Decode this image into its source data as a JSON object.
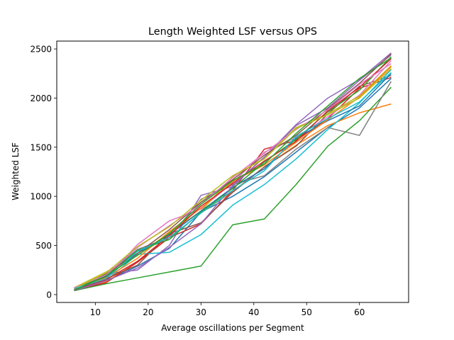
{
  "chart_data": {
    "type": "line",
    "title": "Length Weighted LSF versus OPS",
    "xlabel": "Average oscillations per Segment",
    "ylabel": "Weighted LSF",
    "xlim": [
      2.7,
      69.3
    ],
    "ylim": [
      -80,
      2580
    ],
    "xticks": [
      10,
      20,
      30,
      40,
      50,
      60
    ],
    "yticks": [
      0,
      500,
      1000,
      1500,
      2000,
      2500
    ],
    "x": [
      6,
      12,
      18,
      24,
      30,
      36,
      42,
      48,
      54,
      60,
      66
    ],
    "grid": false,
    "legend": "none",
    "series": [
      {
        "color": "#1f77b4",
        "values": [
          60,
          140,
          290,
          470,
          840,
          1000,
          1200,
          1450,
          1700,
          1900,
          2200
        ]
      },
      {
        "color": "#ff7f0e",
        "values": [
          40,
          130,
          330,
          580,
          830,
          1050,
          1300,
          1520,
          1720,
          1850,
          1940
        ]
      },
      {
        "color": "#2ca02c",
        "values": [
          40,
          110,
          170,
          230,
          290,
          710,
          770,
          1120,
          1510,
          1770,
          2110
        ]
      },
      {
        "color": "#d62728",
        "values": [
          50,
          120,
          330,
          580,
          720,
          1060,
          1480,
          1570,
          1790,
          2100,
          2210
        ]
      },
      {
        "color": "#9467bd",
        "values": [
          60,
          210,
          250,
          500,
          1010,
          1100,
          1400,
          1730,
          2000,
          2190,
          2460
        ]
      },
      {
        "color": "#8c564b",
        "values": [
          40,
          160,
          300,
          620,
          730,
          1040,
          1300,
          1510,
          1840,
          2120,
          2230
        ]
      },
      {
        "color": "#e377c2",
        "values": [
          50,
          170,
          510,
          750,
          870,
          1140,
          1450,
          1600,
          1810,
          2030,
          2380
        ]
      },
      {
        "color": "#7f7f7f",
        "values": [
          60,
          200,
          460,
          580,
          970,
          1120,
          1210,
          1480,
          1700,
          1620,
          2170
        ]
      },
      {
        "color": "#bcbd22",
        "values": [
          70,
          230,
          400,
          630,
          850,
          1200,
          1390,
          1700,
          1840,
          2020,
          2330
        ]
      },
      {
        "color": "#17becf",
        "values": [
          50,
          140,
          410,
          430,
          610,
          910,
          1120,
          1380,
          1680,
          1950,
          2290
        ]
      },
      {
        "color": "#1f77b4",
        "values": [
          60,
          180,
          420,
          610,
          850,
          1090,
          1280,
          1590,
          1770,
          1920,
          2250
        ]
      },
      {
        "color": "#ff7f0e",
        "values": [
          50,
          170,
          370,
          640,
          880,
          1150,
          1320,
          1550,
          1780,
          2010,
          2320
        ]
      },
      {
        "color": "#2ca02c",
        "values": [
          60,
          190,
          450,
          560,
          840,
          1080,
          1350,
          1580,
          1860,
          2080,
          2420
        ]
      },
      {
        "color": "#d62728",
        "values": [
          50,
          150,
          340,
          600,
          900,
          1130,
          1360,
          1560,
          1870,
          2110,
          2400
        ]
      },
      {
        "color": "#9467bd",
        "values": [
          40,
          140,
          270,
          480,
          720,
          1110,
          1400,
          1720,
          1900,
          2180,
          2440
        ]
      },
      {
        "color": "#8c564b",
        "values": [
          60,
          210,
          420,
          660,
          940,
          1170,
          1420,
          1620,
          1890,
          2150,
          2450
        ]
      },
      {
        "color": "#e377c2",
        "values": [
          70,
          200,
          480,
          700,
          920,
          1190,
          1440,
          1680,
          1880,
          2140,
          2350
        ]
      },
      {
        "color": "#bcbd22",
        "values": [
          60,
          220,
          490,
          690,
          960,
          1210,
          1380,
          1690,
          1830,
          2000,
          2300
        ]
      },
      {
        "color": "#17becf",
        "values": [
          60,
          160,
          440,
          580,
          830,
          1060,
          1260,
          1610,
          1790,
          1960,
          2260
        ]
      },
      {
        "color": "#2ca02c",
        "values": [
          40,
          190,
          400,
          620,
          920,
          1160,
          1330,
          1640,
          1920,
          2200,
          2410
        ]
      }
    ]
  }
}
